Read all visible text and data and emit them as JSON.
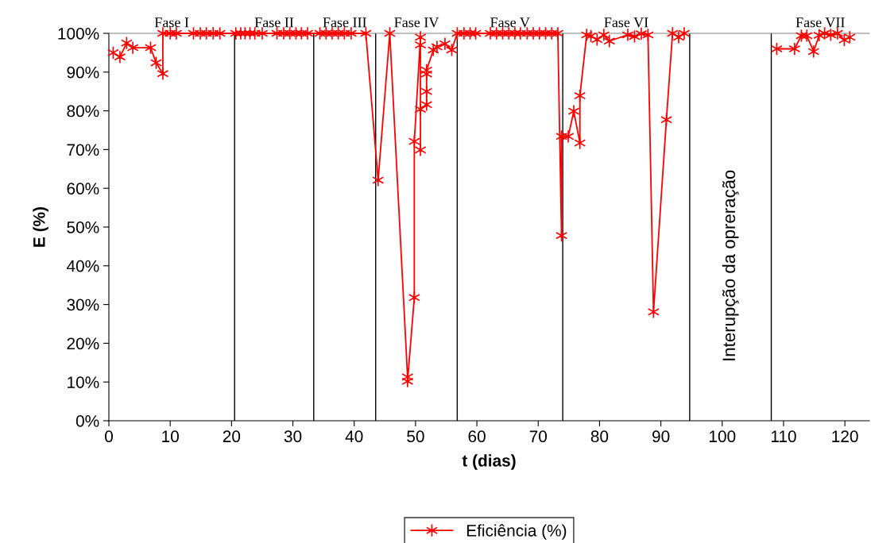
{
  "chart_data": {
    "type": "line",
    "xlabel": "t (dias)",
    "ylabel": "E (%)",
    "series": [
      {
        "name": "Eficiência (%)",
        "color": "#ff0000",
        "x": [
          0.7,
          1.8,
          2.9,
          3.9,
          6.8,
          7.7,
          8.8,
          8.8,
          10,
          11,
          13.8,
          14.9,
          15.9,
          17,
          18.1,
          20.7,
          21.5,
          22.2,
          23,
          23.8,
          25,
          27.4,
          28.5,
          29.5,
          30.5,
          31.4,
          32.4,
          34.4,
          35.4,
          36.4,
          37.4,
          38.4,
          39.5,
          41.9,
          43.9,
          45.8,
          48.7,
          48.7,
          49.8,
          49.8,
          50.8,
          50.8,
          50.8,
          50.8,
          51.8,
          51.8,
          51.8,
          51.8,
          52.9,
          53.5,
          54.8,
          55.9,
          56.8,
          57.9,
          58.9,
          59.8,
          62.2,
          63.2,
          64.2,
          65.2,
          66.2,
          67.1,
          68.2,
          69.2,
          70.2,
          71.2,
          72.2,
          73.2,
          73.8,
          73.8,
          74.9,
          75.8,
          76.8,
          76.8,
          77.9,
          78.6,
          79.6,
          80.7,
          81.6,
          84.6,
          85.7,
          86.8,
          87.9,
          88.8,
          90.9,
          91.9,
          92.9,
          93.8,
          101,
          108.9,
          111.8,
          112.9,
          113.8,
          114.9,
          115.8,
          116.7,
          117.7,
          118.8,
          119.9,
          120.8
        ],
        "values": [
          95,
          93.9,
          97.5,
          96.3,
          96.3,
          92.4,
          89.6,
          100,
          100,
          100,
          100,
          100,
          100,
          100,
          100,
          100,
          100,
          100,
          100,
          100,
          100,
          100,
          100,
          100,
          100,
          100,
          100,
          100,
          100,
          100,
          100,
          100,
          100,
          100,
          62.1,
          100,
          11.3,
          10.2,
          31.8,
          72.1,
          99,
          97,
          69.9,
          80.4,
          81.6,
          85,
          89.5,
          90.5,
          95.7,
          96.5,
          97.3,
          95.7,
          100,
          100,
          100,
          100,
          100,
          100,
          100,
          100,
          100,
          100,
          100,
          100,
          100,
          100,
          100,
          100,
          47.8,
          73.4,
          73.4,
          79.9,
          71.7,
          83.9,
          99.6,
          99.3,
          98.4,
          99.6,
          98,
          99.6,
          99.2,
          99.9,
          99.6,
          28.1,
          77.7,
          100,
          99,
          100,
          null,
          96,
          96,
          99.4,
          99.4,
          95.3,
          99.5,
          100,
          99.6,
          100,
          98.3,
          99
        ]
      }
    ],
    "xlim": [
      0,
      124
    ],
    "xticks": [
      0,
      10,
      20,
      30,
      40,
      50,
      60,
      70,
      80,
      90,
      100,
      110,
      120
    ],
    "ylim": [
      0,
      100
    ],
    "yticks": [
      {
        "value": 0,
        "label": "0%"
      },
      {
        "value": 10,
        "label": "10%"
      },
      {
        "value": 20,
        "label": "20%"
      },
      {
        "value": 30,
        "label": "30%"
      },
      {
        "value": 40,
        "label": "40%"
      },
      {
        "value": 50,
        "label": "50%"
      },
      {
        "value": 60,
        "label": "60%"
      },
      {
        "value": 70,
        "label": "70%"
      },
      {
        "value": 80,
        "label": "80%"
      },
      {
        "value": 90,
        "label": "90%"
      },
      {
        "value": 100,
        "label": "100%"
      }
    ],
    "ref_lines": [
      {
        "axis": "x",
        "value": 20.5,
        "color": "#000000"
      },
      {
        "axis": "x",
        "value": 33.4,
        "color": "#000000"
      },
      {
        "axis": "x",
        "value": 43.5,
        "color": "#000000"
      },
      {
        "axis": "x",
        "value": 56.8,
        "color": "#000000"
      },
      {
        "axis": "x",
        "value": 74,
        "color": "#000000"
      },
      {
        "axis": "x",
        "value": 94.7,
        "color": "#000000"
      },
      {
        "axis": "x",
        "value": 108,
        "color": "#000000"
      }
    ],
    "annotations": [
      "Fase I",
      "Fase II",
      "Fase III",
      "Fase IV",
      "Fase V",
      "Fase VI",
      "Interupção da opreração",
      "Fase VII"
    ],
    "marker": "cross",
    "line_style": "solid",
    "grid": false,
    "legend": "bottom"
  }
}
